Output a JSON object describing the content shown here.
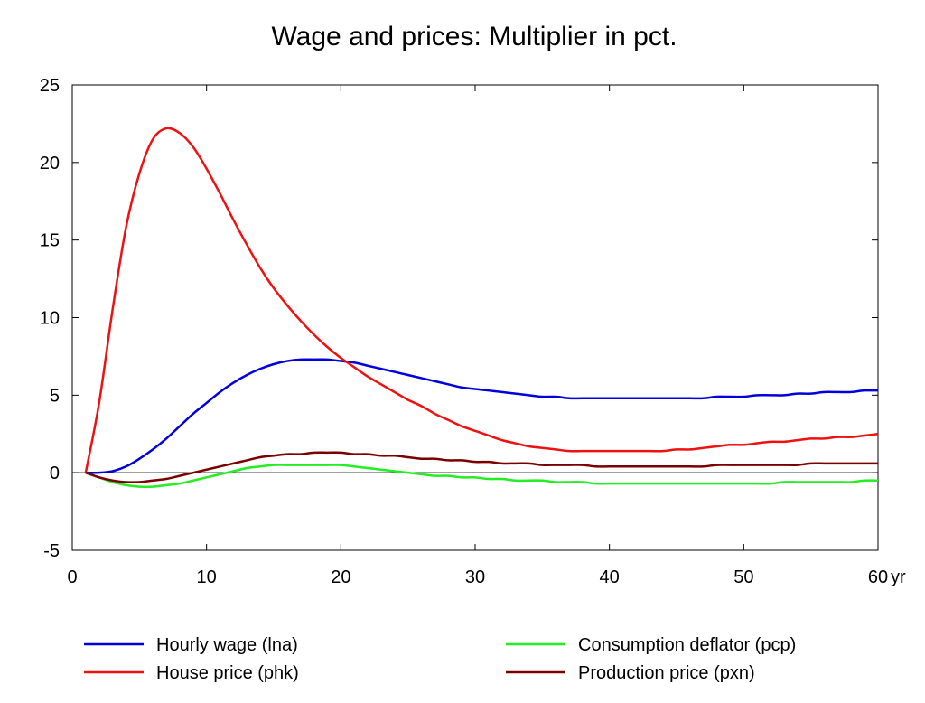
{
  "chart_data": {
    "type": "line",
    "title": "Wage and prices: Multiplier in pct.",
    "xlabel": "",
    "ylabel": "",
    "x_unit_label": "yr",
    "xlim": [
      0,
      60
    ],
    "ylim": [
      -5,
      25
    ],
    "x_ticks": [
      0,
      10,
      20,
      30,
      40,
      50,
      60
    ],
    "y_ticks": [
      -5,
      0,
      5,
      10,
      15,
      20,
      25
    ],
    "grid": false,
    "zero_line": true,
    "legend_position": "bottom",
    "x": [
      1,
      2,
      3,
      4,
      5,
      6,
      7,
      8,
      9,
      10,
      11,
      12,
      13,
      14,
      15,
      16,
      17,
      18,
      19,
      20,
      21,
      22,
      23,
      24,
      25,
      26,
      27,
      28,
      29,
      30,
      31,
      32,
      33,
      34,
      35,
      36,
      37,
      38,
      39,
      40,
      41,
      42,
      43,
      44,
      45,
      46,
      47,
      48,
      49,
      50,
      51,
      52,
      53,
      54,
      55,
      56,
      57,
      58,
      59,
      60
    ],
    "series": [
      {
        "name": "Hourly wage (lna)",
        "color": "#0000dd",
        "values": [
          0,
          0,
          0.1,
          0.4,
          0.9,
          1.5,
          2.2,
          3.0,
          3.8,
          4.5,
          5.2,
          5.8,
          6.3,
          6.7,
          7.0,
          7.2,
          7.3,
          7.3,
          7.3,
          7.2,
          7.1,
          6.9,
          6.7,
          6.5,
          6.3,
          6.1,
          5.9,
          5.7,
          5.5,
          5.4,
          5.3,
          5.2,
          5.1,
          5.0,
          4.9,
          4.9,
          4.8,
          4.8,
          4.8,
          4.8,
          4.8,
          4.8,
          4.8,
          4.8,
          4.8,
          4.8,
          4.8,
          4.9,
          4.9,
          4.9,
          5.0,
          5.0,
          5.0,
          5.1,
          5.1,
          5.2,
          5.2,
          5.2,
          5.3,
          5.3
        ]
      },
      {
        "name": "House price (phk)",
        "color": "#ee1111",
        "values": [
          0,
          4.5,
          10.5,
          15.8,
          19.3,
          21.5,
          22.2,
          21.9,
          21.0,
          19.6,
          18.0,
          16.3,
          14.7,
          13.2,
          11.9,
          10.8,
          9.8,
          8.9,
          8.1,
          7.4,
          6.8,
          6.2,
          5.7,
          5.2,
          4.7,
          4.3,
          3.8,
          3.4,
          3.0,
          2.7,
          2.4,
          2.1,
          1.9,
          1.7,
          1.6,
          1.5,
          1.4,
          1.4,
          1.4,
          1.4,
          1.4,
          1.4,
          1.4,
          1.4,
          1.5,
          1.5,
          1.6,
          1.7,
          1.8,
          1.8,
          1.9,
          2.0,
          2.0,
          2.1,
          2.2,
          2.2,
          2.3,
          2.3,
          2.4,
          2.5
        ]
      },
      {
        "name": "Consumption deflator (pcp)",
        "color": "#22ee22",
        "values": [
          0,
          -0.3,
          -0.6,
          -0.8,
          -0.9,
          -0.9,
          -0.8,
          -0.7,
          -0.5,
          -0.3,
          -0.1,
          0.1,
          0.3,
          0.4,
          0.5,
          0.5,
          0.5,
          0.5,
          0.5,
          0.5,
          0.4,
          0.3,
          0.2,
          0.1,
          0,
          -0.1,
          -0.2,
          -0.2,
          -0.3,
          -0.3,
          -0.4,
          -0.4,
          -0.5,
          -0.5,
          -0.5,
          -0.6,
          -0.6,
          -0.6,
          -0.7,
          -0.7,
          -0.7,
          -0.7,
          -0.7,
          -0.7,
          -0.7,
          -0.7,
          -0.7,
          -0.7,
          -0.7,
          -0.7,
          -0.7,
          -0.7,
          -0.6,
          -0.6,
          -0.6,
          -0.6,
          -0.6,
          -0.6,
          -0.5,
          -0.5
        ]
      },
      {
        "name": "Production price (pxn)",
        "color": "#7a0000",
        "values": [
          0,
          -0.3,
          -0.5,
          -0.6,
          -0.6,
          -0.5,
          -0.4,
          -0.2,
          0,
          0.2,
          0.4,
          0.6,
          0.8,
          1.0,
          1.1,
          1.2,
          1.2,
          1.3,
          1.3,
          1.3,
          1.2,
          1.2,
          1.1,
          1.1,
          1.0,
          0.9,
          0.9,
          0.8,
          0.8,
          0.7,
          0.7,
          0.6,
          0.6,
          0.6,
          0.5,
          0.5,
          0.5,
          0.5,
          0.4,
          0.4,
          0.4,
          0.4,
          0.4,
          0.4,
          0.4,
          0.4,
          0.4,
          0.5,
          0.5,
          0.5,
          0.5,
          0.5,
          0.5,
          0.5,
          0.6,
          0.6,
          0.6,
          0.6,
          0.6,
          0.6
        ]
      }
    ]
  }
}
